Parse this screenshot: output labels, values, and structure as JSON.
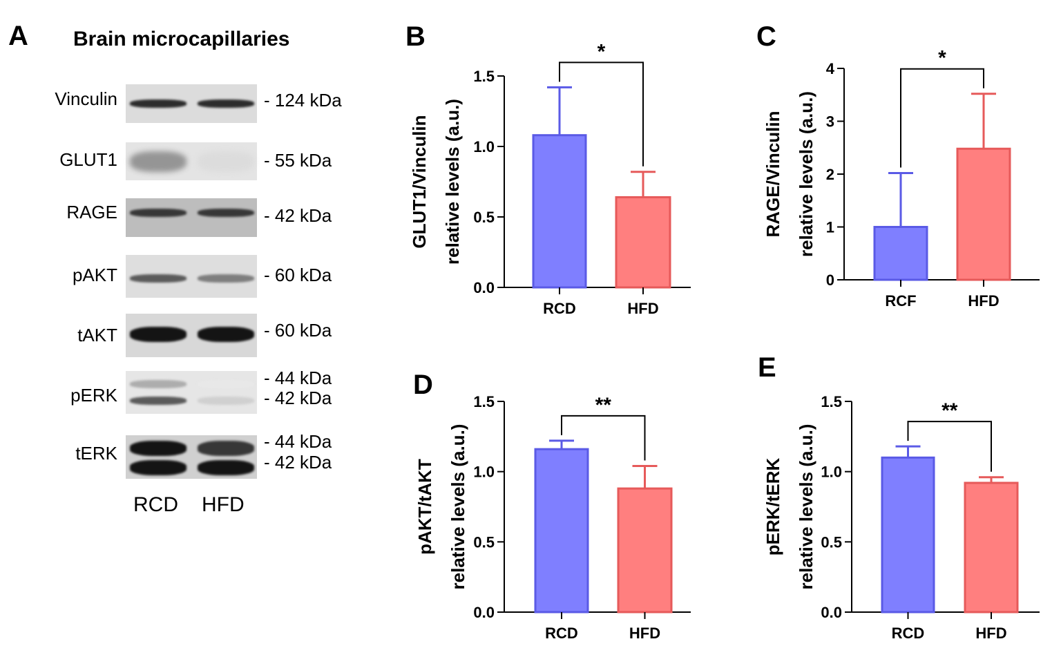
{
  "colors": {
    "rcd": "#7f7fff",
    "rcd_edge": "#5a5ae6",
    "hfd": "#ff7f7f",
    "hfd_edge": "#e65a5a"
  },
  "blot": {
    "letter": "A",
    "title": "Brain microcapillaries",
    "rows": [
      {
        "label": "Vinculin",
        "kda": [
          "- 124 kDa"
        ],
        "bg": "#dcdcdc",
        "bands": [
          {
            "dark": 0.9,
            "dark2": 0.9
          }
        ]
      },
      {
        "label": "GLUT1",
        "kda": [
          "- 55 kDa"
        ],
        "bg": "#e4e4e4",
        "bands": [
          {
            "dark": 0.45,
            "dark2": 0.15
          }
        ]
      },
      {
        "label": "RAGE",
        "kda": [
          "- 42 kDa"
        ],
        "bg": "#bdbdbd",
        "bands": [
          {
            "dark": 0.85,
            "dark2": 0.85
          }
        ]
      },
      {
        "label": "pAKT",
        "kda": [
          "- 60 kDa"
        ],
        "bg": "#dedede",
        "bands": [
          {
            "dark": 0.7,
            "dark2": 0.55
          }
        ]
      },
      {
        "label": "tAKT",
        "kda": [
          "- 60 kDa"
        ],
        "bg": "#d8d8d8",
        "bands": [
          {
            "dark": 1.0,
            "dark2": 1.0
          }
        ]
      },
      {
        "label": "pERK",
        "kda": [
          "- 44 kDa",
          "- 42 kDa"
        ],
        "bg": "#e6e6e6",
        "bands": [
          {
            "dark": 0.35,
            "dark2": 0.1
          },
          {
            "dark": 0.7,
            "dark2": 0.2
          }
        ]
      },
      {
        "label": "tERK",
        "kda": [
          "- 44 kDa",
          "- 42 kDa"
        ],
        "bg": "#d0d0d0",
        "bands": [
          {
            "dark": 1.0,
            "dark2": 0.85
          },
          {
            "dark": 1.0,
            "dark2": 1.0
          }
        ]
      }
    ],
    "lanes": [
      "RCD",
      "HFD"
    ]
  },
  "chart_data": [
    {
      "letter": "B",
      "type": "bar",
      "categories": [
        "RCD",
        "HFD"
      ],
      "values": [
        1.08,
        0.64
      ],
      "errors": [
        0.34,
        0.18
      ],
      "ylabel": [
        "GLUT1/Vinculin",
        "relative levels (a.u.)"
      ],
      "ylim": [
        0,
        1.5
      ],
      "yticks": [
        "0.0",
        "0.5",
        "1.0",
        "1.5"
      ],
      "significance": "*"
    },
    {
      "letter": "C",
      "type": "bar",
      "categories": [
        "RCF",
        "HFD"
      ],
      "values": [
        1.0,
        2.48
      ],
      "errors": [
        1.02,
        1.04
      ],
      "ylabel": [
        "RAGE/Vinculin",
        "relative levels (a.u.)"
      ],
      "ylim": [
        0,
        4
      ],
      "yticks": [
        "0",
        "1",
        "2",
        "3",
        "4"
      ],
      "significance": "*"
    },
    {
      "letter": "D",
      "type": "bar",
      "categories": [
        "RCD",
        "HFD"
      ],
      "values": [
        1.16,
        0.88
      ],
      "errors": [
        0.06,
        0.16
      ],
      "ylabel": [
        "pAKT/tAKT",
        "relative levels (a.u.)"
      ],
      "ylim": [
        0,
        1.5
      ],
      "yticks": [
        "0.0",
        "0.5",
        "1.0",
        "1.5"
      ],
      "significance": "**"
    },
    {
      "letter": "E",
      "type": "bar",
      "categories": [
        "RCD",
        "HFD"
      ],
      "values": [
        1.1,
        0.92
      ],
      "errors": [
        0.08,
        0.04
      ],
      "ylabel": [
        "pERK/tERK",
        "relative levels (a.u.)"
      ],
      "ylim": [
        0,
        1.5
      ],
      "yticks": [
        "0.0",
        "0.5",
        "1.0",
        "1.5"
      ],
      "significance": "**"
    }
  ]
}
